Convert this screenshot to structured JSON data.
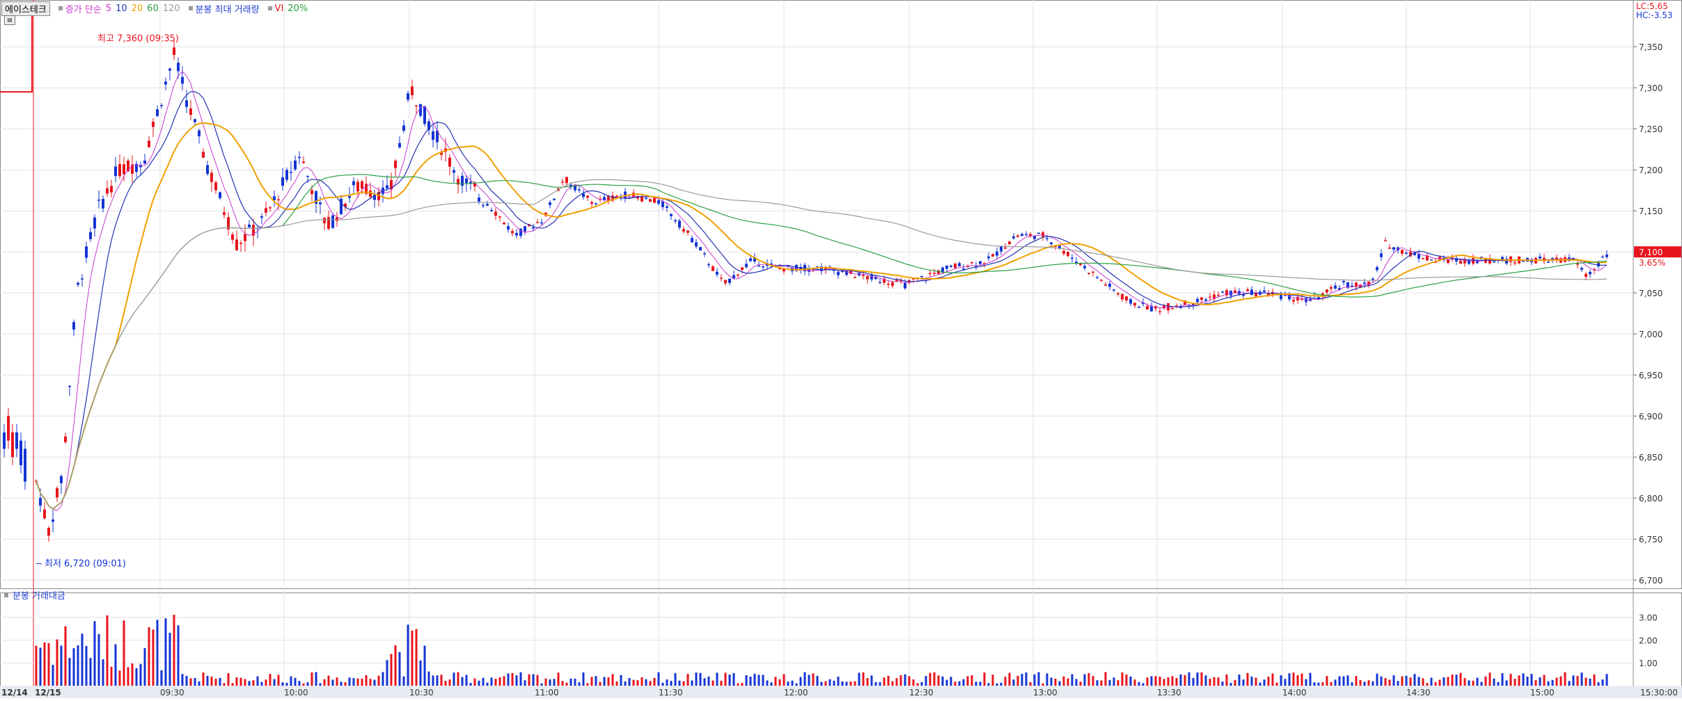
{
  "legend": {
    "ticker": "에이스테크",
    "ma_label": "증가 단순",
    "ma5": "5",
    "ma10": "10",
    "ma20": "20",
    "ma60": "60",
    "ma120": "120",
    "vol_label": "분봉 최대 거래량",
    "vi_label": "VI",
    "pct_label": "20%"
  },
  "volume_panel_label": "분봉 거래대금",
  "lc_label": "LC:5.65",
  "hc_label": "HC:-3.53",
  "high_annotation": "최고 7,360 (09:35)",
  "low_annotation": "최저 6,720 (09:01)",
  "last_price": "7,100",
  "last_change": "3.65%",
  "colors": {
    "up": "#e8141c",
    "down": "#1434d4",
    "ma5": "#c83ad0",
    "ma10": "#2232b0",
    "ma20": "#f0a000",
    "ma60": "#2aa040",
    "ma120": "#9a9a9a",
    "grid": "#e2e2e2"
  },
  "chart_data": {
    "type": "candlestick",
    "y_range": [
      6690,
      7390
    ],
    "y_ticks": [
      "7,350",
      "7,300",
      "7,250",
      "7,200",
      "7,150",
      "7,100",
      "7,050",
      "7,000",
      "6,950",
      "6,900",
      "6,850",
      "6,800",
      "6,750",
      "6,700"
    ],
    "volume_ticks": [
      "3.00",
      "2.00",
      "1.00"
    ],
    "x_labels": [
      "12/14",
      "12/15",
      "09:30",
      "10:00",
      "10:30",
      "11:00",
      "11:30",
      "12:00",
      "12:30",
      "13:00",
      "13:30",
      "14:00",
      "14:30",
      "15:00",
      "15:30:00"
    ],
    "sessions": [
      "12/14",
      "12/15"
    ],
    "high": {
      "price": 7360,
      "time": "09:35"
    },
    "low": {
      "price": 6720,
      "time": "09:01"
    },
    "last_close": 7100,
    "change_pct": 3.65
  }
}
